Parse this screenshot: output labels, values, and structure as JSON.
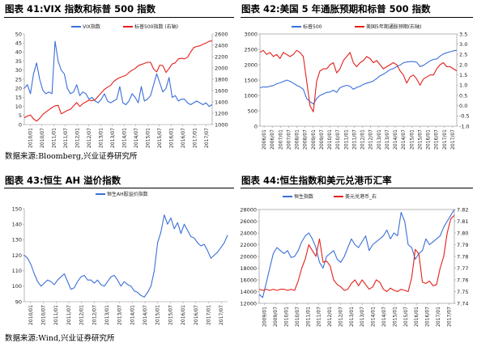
{
  "titles": {
    "p1": "图表 41:VIX 指数和标普 500 指数",
    "p2": "图表 42:美国 5 年通胀预期和标普 500 指数",
    "p3": "图表 43:恒生 AH 溢价指数",
    "p4": "图表 44:恒生指数和美元兑港币汇率"
  },
  "sources": {
    "s1": "数据来源:Bloomberg,兴业证券研究所",
    "s2": "数据来源:Wind,兴业证券研究所"
  },
  "colors": {
    "blue": "#3a6fd8",
    "red": "#e3201b"
  },
  "chart_data": [
    {
      "id": "p1",
      "type": "line",
      "title": "VIX指数和标普500指数",
      "x_labels": [
        "2010/01",
        "2010/07",
        "2011/01",
        "2011/07",
        "2012/01",
        "2012/07",
        "2013/01",
        "2013/07",
        "2014/01",
        "2014/07",
        "2015/01",
        "2015/07",
        "2016/01",
        "2016/07",
        "2017/01",
        "2017/07"
      ],
      "ylim_left": [
        0,
        50
      ],
      "yticks_left": [
        0,
        5,
        10,
        15,
        20,
        25,
        30,
        35,
        40,
        45,
        50
      ],
      "ylim_right": [
        1000,
        2600
      ],
      "yticks_right": [
        1000,
        1200,
        1400,
        1600,
        1800,
        2000,
        2200,
        2400,
        2600
      ],
      "series": [
        {
          "name": "VIX指数",
          "axis": "left",
          "color": "#3a6fd8",
          "values": [
            20,
            22,
            17,
            28,
            34,
            25,
            19,
            17,
            18,
            17,
            46,
            35,
            30,
            28,
            20,
            17,
            18,
            22,
            16,
            18,
            17,
            14,
            15,
            13,
            12,
            14,
            17,
            13,
            12,
            13,
            14,
            21,
            12,
            11,
            13,
            17,
            15,
            12,
            21,
            13,
            14,
            16,
            22,
            28,
            23,
            18,
            20,
            26,
            15,
            16,
            13,
            14,
            14,
            12,
            11,
            12,
            13,
            12,
            11,
            12,
            10,
            11
          ]
        },
        {
          "name": "标普500指数 (右轴)",
          "axis": "right",
          "color": "#e3201b",
          "values": [
            1120,
            1150,
            1170,
            1100,
            1060,
            1110,
            1180,
            1220,
            1260,
            1300,
            1330,
            1340,
            1190,
            1220,
            1250,
            1270,
            1330,
            1390,
            1320,
            1370,
            1400,
            1430,
            1420,
            1440,
            1500,
            1560,
            1620,
            1660,
            1690,
            1760,
            1800,
            1830,
            1850,
            1870,
            1920,
            1960,
            1990,
            2040,
            2060,
            2080,
            2100,
            2100,
            1980,
            1930,
            2050,
            2040,
            1920,
            1990,
            2070,
            2090,
            2160,
            2170,
            2160,
            2190,
            2280,
            2360,
            2380,
            2390,
            2420,
            2440,
            2470,
            2480
          ]
        }
      ]
    },
    {
      "id": "p2",
      "type": "line",
      "title": "美国5年通胀预期和标普500指数",
      "x_labels": [
        "2006/01",
        "2006/07",
        "2007/01",
        "2007/07",
        "2008/01",
        "2008/07",
        "2009/01",
        "2009/07",
        "2010/01",
        "2010/07",
        "2011/01",
        "2011/07",
        "2012/01",
        "2012/07",
        "2013/01",
        "2013/07",
        "2014/01",
        "2014/07",
        "2015/01",
        "2015/07",
        "2016/01",
        "2016/07",
        "2017/01",
        "2017/07"
      ],
      "ylim_left": [
        0,
        3000
      ],
      "yticks_left": [
        0,
        500,
        1000,
        1500,
        2000,
        2500,
        3000
      ],
      "ylim_right": [
        -1.0,
        3.5
      ],
      "yticks_right": [
        -1.0,
        -0.5,
        0.0,
        0.5,
        1.0,
        1.5,
        2.0,
        2.5,
        3.0,
        3.5
      ],
      "series": [
        {
          "name": "标普500",
          "axis": "left",
          "color": "#3a6fd8",
          "values": [
            1250,
            1280,
            1270,
            1300,
            1320,
            1380,
            1410,
            1450,
            1500,
            1460,
            1400,
            1330,
            1280,
            1200,
            900,
            800,
            720,
            900,
            1000,
            1050,
            1100,
            1110,
            1170,
            1100,
            1250,
            1300,
            1330,
            1300,
            1200,
            1260,
            1300,
            1360,
            1400,
            1430,
            1470,
            1550,
            1640,
            1690,
            1760,
            1840,
            1870,
            1940,
            1990,
            2060,
            2090,
            2100,
            2100,
            2080,
            1940,
            1980,
            2050,
            2130,
            2170,
            2190,
            2280,
            2350,
            2390,
            2420,
            2450,
            2470
          ]
        },
        {
          "name": "美国5年期通胀预期(右轴)",
          "axis": "right",
          "color": "#e3201b",
          "values": [
            2.6,
            2.7,
            2.5,
            2.6,
            2.4,
            2.5,
            2.3,
            2.6,
            2.5,
            2.4,
            2.5,
            2.7,
            2.6,
            2.4,
            1.2,
            0.0,
            -0.3,
            1.2,
            1.7,
            1.8,
            1.8,
            2.0,
            2.1,
            1.6,
            1.8,
            2.2,
            2.4,
            2.6,
            2.1,
            1.9,
            2.1,
            2.2,
            2.4,
            2.3,
            2.1,
            2.2,
            2.0,
            1.8,
            1.9,
            2.0,
            2.1,
            2.0,
            1.7,
            1.5,
            1.1,
            1.4,
            1.5,
            1.3,
            1.0,
            1.3,
            1.4,
            1.5,
            1.5,
            1.8,
            2.0,
            2.1,
            1.9,
            1.9,
            1.8,
            1.7
          ]
        }
      ]
    },
    {
      "id": "p3",
      "type": "line",
      "title": "恒生AH股溢价指数",
      "x_labels": [
        "2010/01",
        "2010/07",
        "2011/01",
        "2011/07",
        "2012/01",
        "2012/07",
        "2013/01",
        "2013/07",
        "2014/01",
        "2014/07",
        "2015/01",
        "2015/07",
        "2016/01",
        "2016/07",
        "2017/01",
        "2017/07"
      ],
      "ylim_left": [
        90,
        150
      ],
      "yticks_left": [
        90,
        100,
        110,
        120,
        130,
        140,
        150
      ],
      "series": [
        {
          "name": "恒生AH股溢价指数",
          "axis": "left",
          "color": "#3a6fd8",
          "values": [
            120,
            118,
            114,
            108,
            103,
            100,
            102,
            104,
            103,
            101,
            104,
            106,
            108,
            103,
            98,
            99,
            103,
            106,
            107,
            104,
            104,
            102,
            104,
            101,
            100,
            103,
            106,
            107,
            104,
            100,
            103,
            101,
            100,
            97,
            96,
            94,
            93,
            96,
            100,
            110,
            128,
            135,
            146,
            140,
            144,
            137,
            141,
            134,
            140,
            136,
            132,
            131,
            128,
            126,
            127,
            123,
            118,
            120,
            122,
            125,
            128,
            133
          ]
        }
      ]
    },
    {
      "id": "p4",
      "type": "line",
      "title": "恒生指数和美元兑港币汇率",
      "x_labels": [
        "2009/01",
        "2009/07",
        "2010/01",
        "2010/07",
        "2011/01",
        "2011/07",
        "2012/01",
        "2012/07",
        "2013/01",
        "2013/07",
        "2014/01",
        "2014/07",
        "2015/01",
        "2015/07",
        "2016/01",
        "2016/07",
        "2017/01",
        "2017/07"
      ],
      "ylim_left": [
        12000,
        28000
      ],
      "yticks_left": [
        12000,
        14000,
        16000,
        18000,
        20000,
        22000,
        24000,
        26000,
        28000
      ],
      "ylim_right": [
        7.74,
        7.82
      ],
      "yticks_right": [
        7.74,
        7.75,
        7.76,
        7.77,
        7.78,
        7.79,
        7.8,
        7.81,
        7.82
      ],
      "series": [
        {
          "name": "恒生指数",
          "axis": "left",
          "color": "#3a6fd8",
          "values": [
            13500,
            13000,
            15500,
            18000,
            20500,
            21500,
            21000,
            20500,
            21000,
            19800,
            20000,
            21000,
            22500,
            23500,
            24000,
            23000,
            21500,
            19000,
            18000,
            20000,
            20500,
            21000,
            19500,
            19000,
            20000,
            21500,
            23000,
            22000,
            21500,
            22500,
            23500,
            21000,
            22000,
            22500,
            23000,
            23500,
            24500,
            23000,
            24000,
            23500,
            27500,
            26000,
            22000,
            21500,
            19500,
            20500,
            21000,
            23000,
            22000,
            22500,
            23000,
            23500,
            25000,
            26000,
            27000,
            28000
          ]
        },
        {
          "name": "美元兑港币_右",
          "axis": "right",
          "color": "#e3201b",
          "values": [
            7.752,
            7.751,
            7.752,
            7.751,
            7.752,
            7.751,
            7.752,
            7.752,
            7.751,
            7.752,
            7.751,
            7.759,
            7.77,
            7.778,
            7.79,
            7.785,
            7.78,
            7.795,
            7.775,
            7.776,
            7.772,
            7.76,
            7.756,
            7.754,
            7.751,
            7.752,
            7.757,
            7.76,
            7.755,
            7.76,
            7.756,
            7.752,
            7.754,
            7.76,
            7.758,
            7.752,
            7.75,
            7.753,
            7.751,
            7.75,
            7.752,
            7.751,
            7.75,
            7.762,
            7.786,
            7.782,
            7.758,
            7.757,
            7.759,
            7.755,
            7.756,
            7.77,
            7.78,
            7.8,
            7.812,
            7.815
          ]
        }
      ]
    }
  ]
}
